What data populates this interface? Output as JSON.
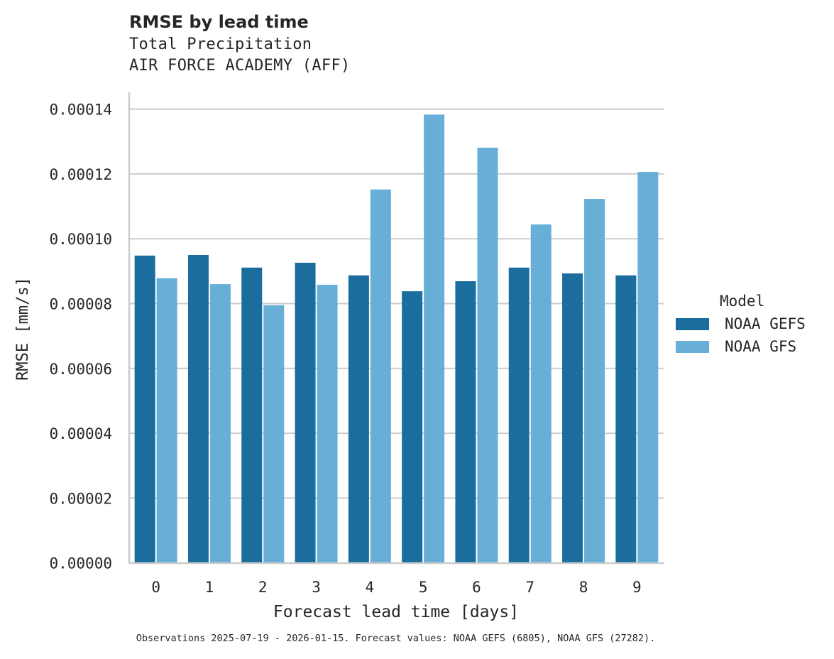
{
  "header": {
    "title": "RMSE by lead time",
    "subtitle_line1": "Total Precipitation",
    "subtitle_line2": "AIR FORCE ACADEMY (AFF)"
  },
  "legend": {
    "title": "Model",
    "items": [
      {
        "label": "NOAA GEFS",
        "color": "#1a6d9c"
      },
      {
        "label": "NOAA GFS",
        "color": "#67afd7"
      }
    ]
  },
  "footer": {
    "text": "Observations 2025-07-19 - 2026-01-15. Forecast values: NOAA GEFS (6805), NOAA GFS (27282)."
  },
  "chart_data": {
    "type": "bar",
    "title": "RMSE by lead time",
    "subtitle": "Total Precipitation — AIR FORCE ACADEMY (AFF)",
    "xlabel": "Forecast lead time [days]",
    "ylabel": "RMSE [mm/s]",
    "categories": [
      "0",
      "1",
      "2",
      "3",
      "4",
      "5",
      "6",
      "7",
      "8",
      "9"
    ],
    "series": [
      {
        "name": "NOAA GEFS",
        "color": "#1a6d9c",
        "values": [
          9.48e-05,
          9.5e-05,
          9.11e-05,
          9.26e-05,
          8.87e-05,
          8.38e-05,
          8.69e-05,
          9.11e-05,
          8.93e-05,
          8.87e-05
        ]
      },
      {
        "name": "NOAA GFS",
        "color": "#67afd7",
        "values": [
          8.78e-05,
          8.6e-05,
          7.95e-05,
          8.58e-05,
          0.0001152,
          0.0001383,
          0.0001281,
          0.0001044,
          0.0001123,
          0.0001206
        ]
      }
    ],
    "yticks": [
      "0.00000",
      "0.00002",
      "0.00004",
      "0.00006",
      "0.00008",
      "0.00010",
      "0.00012",
      "0.00014"
    ],
    "ylim": [
      0,
      0.000145
    ],
    "grid": "horizontal",
    "legend_position": "right"
  }
}
